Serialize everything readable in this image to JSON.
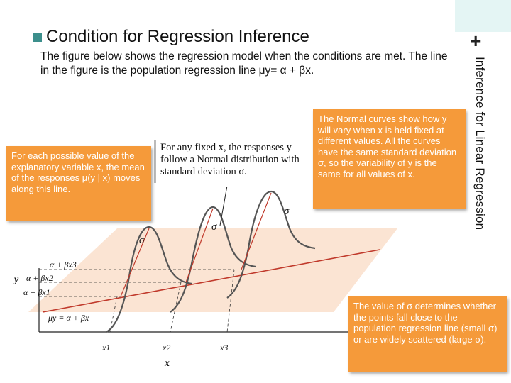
{
  "slide": {
    "title_bullet": "n",
    "title": "Condition for Regression Inference",
    "side_title": "Inference for Linear Regression",
    "plus_symbol": "+",
    "intro": "The figure below shows the regression model when the conditions are met. The line in the figure is the population regression line μy= α + βx."
  },
  "callouts": {
    "left": "For each possible value of the explanatory variable x, the mean of the responses μ(y | x) moves along this line.",
    "right": "The Normal curves show how y will vary when x is held fixed at different values. All the curves have the same standard deviation σ, so the variability of y is the same for all values of x.",
    "bottom": "The value of σ determines whether the points fall close to the population regression line (small σ) or are widely scattered (large σ)."
  },
  "figure": {
    "quote": "For any fixed x, the responses y follow a Normal distribution with standard deviation σ.",
    "labels": {
      "y_axis": "y",
      "x_axis": "x",
      "x1": "x1",
      "x2": "x2",
      "x3": "x3",
      "y1": "α + βx1",
      "y2": "α + βx2",
      "y3": "α + βx3",
      "line": "μy = α + βx",
      "sigma": "σ"
    }
  },
  "colors": {
    "accent_teal": "#3c8f8c",
    "callout_orange": "#f59a3a",
    "plane_pink": "#fbe4d3",
    "regression_line": "#c0392b"
  }
}
